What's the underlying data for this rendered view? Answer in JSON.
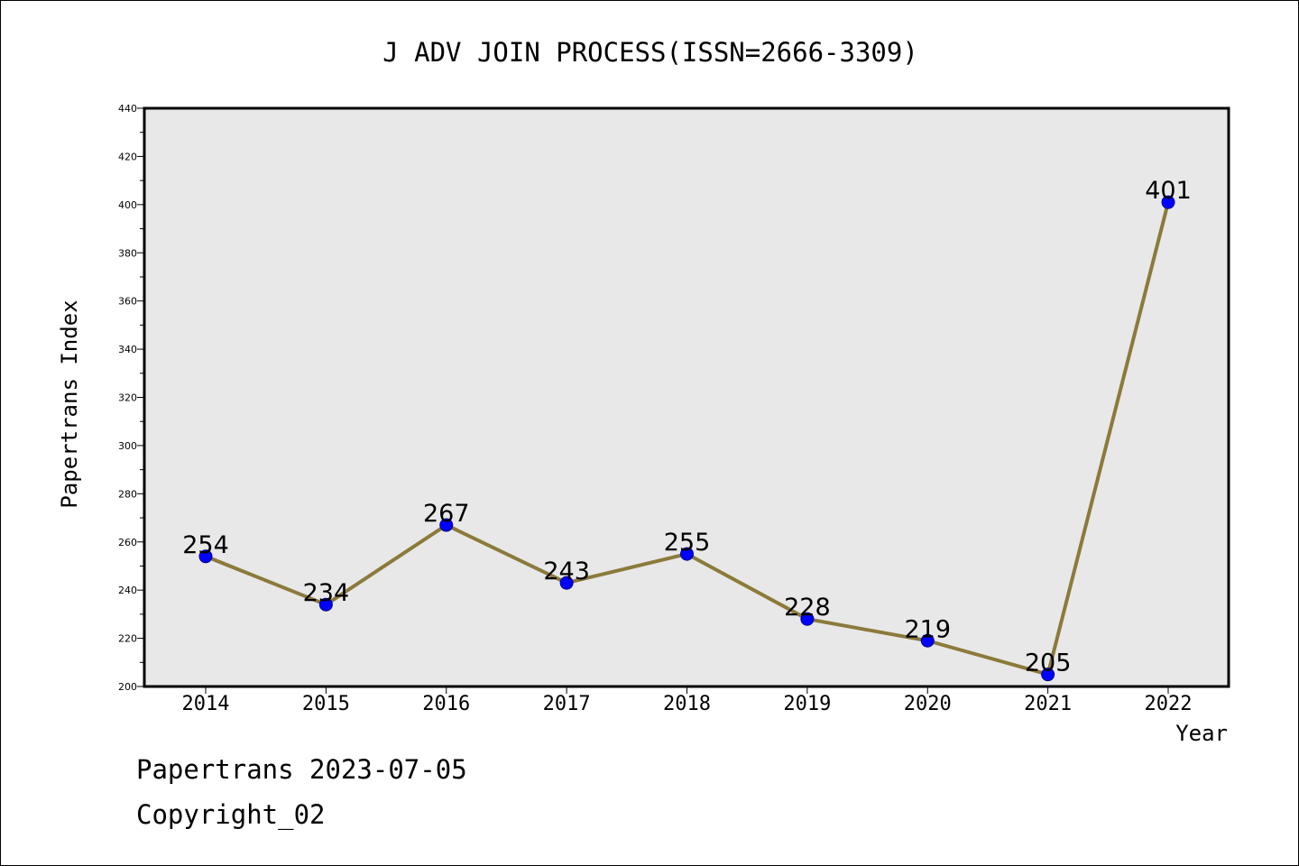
{
  "chart_data": {
    "type": "line",
    "title": "J ADV JOIN PROCESS(ISSN=2666-3309)",
    "xlabel": "Year",
    "ylabel": "Papertrans Index",
    "categories": [
      "2014",
      "2015",
      "2016",
      "2017",
      "2018",
      "2019",
      "2020",
      "2021",
      "2022"
    ],
    "values": [
      254,
      234,
      267,
      243,
      255,
      228,
      219,
      205,
      401
    ],
    "data_labels": [
      "254",
      "234",
      "267",
      "243",
      "255",
      "228",
      "219",
      "205",
      "401"
    ],
    "ylim": [
      200,
      440
    ],
    "yticks": [
      "200",
      "220",
      "240",
      "260",
      "280",
      "300",
      "320",
      "340",
      "360",
      "380",
      "400",
      "420",
      "440"
    ],
    "grid": false,
    "colors": {
      "line": "#8B7A3A",
      "marker": "#0000FF",
      "plot_background": "#E8E8E8"
    }
  },
  "footer": {
    "line1": "Papertrans 2023-07-05",
    "line2": "Copyright_02"
  }
}
